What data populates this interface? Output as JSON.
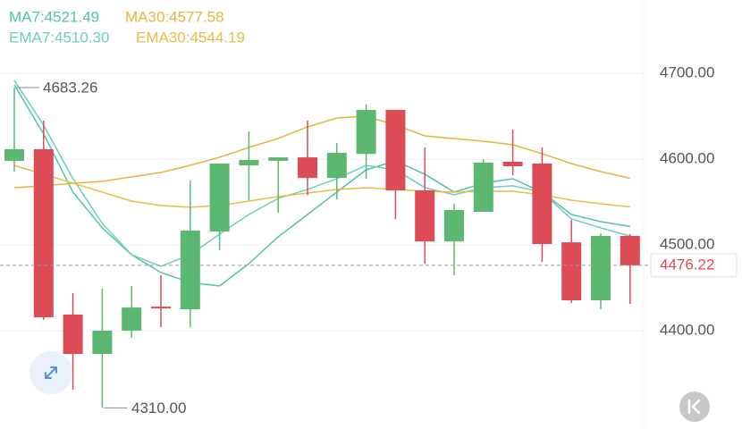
{
  "chart_data": {
    "type": "candlestick",
    "up_color": "#5cb870",
    "down_color": "#dc4b56",
    "ylim": [
      4285.4,
      4785.4
    ],
    "yticks": [
      {
        "value": 4400,
        "label": "4400.00"
      },
      {
        "value": 4500,
        "label": "4500.00"
      },
      {
        "value": 4600,
        "label": "4600.00"
      },
      {
        "value": 4700,
        "label": "4700.00"
      }
    ],
    "grid": true,
    "last_price": 4476.22,
    "max_label": 4683.26,
    "min_label": {
      "value": 4310,
      "label": "4310.00"
    },
    "candles": [
      {
        "open": 4597.9,
        "high": 4683.26,
        "low": 4585.4,
        "close": 4611.5
      },
      {
        "open": 4611.5,
        "high": 4644.8,
        "low": 4412.5,
        "close": 4415.6
      },
      {
        "open": 4418.8,
        "high": 4443.7,
        "low": 4331.3,
        "close": 4372.9
      },
      {
        "open": 4372.9,
        "high": 4449,
        "low": 4310,
        "close": 4400
      },
      {
        "open": 4400,
        "high": 4452,
        "low": 4391.7,
        "close": 4427
      },
      {
        "open": 4428,
        "high": 4464.6,
        "low": 4404.2,
        "close": 4426
      },
      {
        "open": 4425,
        "high": 4575,
        "low": 4404,
        "close": 4516.7
      },
      {
        "open": 4515.6,
        "high": 4594.8,
        "low": 4493.8,
        "close": 4594.8
      },
      {
        "open": 4592.7,
        "high": 4632.3,
        "low": 4552,
        "close": 4599
      },
      {
        "open": 4598,
        "high": 4602,
        "low": 4537.5,
        "close": 4602
      },
      {
        "open": 4602,
        "high": 4644.8,
        "low": 4558,
        "close": 4578
      },
      {
        "open": 4578,
        "high": 4618.8,
        "low": 4553,
        "close": 4607.3
      },
      {
        "open": 4606,
        "high": 4663.5,
        "low": 4577,
        "close": 4657.3
      },
      {
        "open": 4657.3,
        "high": 4657.3,
        "low": 4530,
        "close": 4563.5
      },
      {
        "open": 4563.5,
        "high": 4613.5,
        "low": 4478,
        "close": 4504
      },
      {
        "open": 4504,
        "high": 4548,
        "low": 4464.6,
        "close": 4540.6
      },
      {
        "open": 4538.5,
        "high": 4600,
        "low": 4538.5,
        "close": 4595.8
      },
      {
        "open": 4596.9,
        "high": 4634.4,
        "low": 4581,
        "close": 4591.7
      },
      {
        "open": 4594.8,
        "high": 4613.5,
        "low": 4480,
        "close": 4501
      },
      {
        "open": 4503,
        "high": 4529,
        "low": 4432.3,
        "close": 4435.4
      },
      {
        "open": 4435.4,
        "high": 4513.5,
        "low": 4425,
        "close": 4510.4
      },
      {
        "open": 4510.4,
        "high": 4512.5,
        "low": 4431.3,
        "close": 4476.22
      }
    ],
    "series": [
      {
        "name": "MA7:4521.49",
        "color": "#4fc4a9",
        "values": [
          4686.5,
          4629.2,
          4561.5,
          4519.8,
          4488.5,
          4467.7,
          4456.2,
          4452.1,
          4478.1,
          4509.4,
          4535.4,
          4561.5,
          4587.5,
          4597.9,
          4582.3,
          4561.5,
          4571.9,
          4577.1,
          4561.5,
          4535.4,
          4527.1,
          4521.49
        ]
      },
      {
        "name": "MA30:4577.58",
        "color": "#e6b43c",
        "values": [
          4566.7,
          4568.8,
          4571.9,
          4574,
          4579.2,
          4584.4,
          4592.7,
          4602.1,
          4613.5,
          4624,
          4637.5,
          4647.9,
          4650,
          4639.6,
          4627.1,
          4624,
          4620.8,
          4616.7,
          4606.3,
          4594.8,
          4585.4,
          4577.58
        ]
      },
      {
        "name": "EMA7:4510.30",
        "color": "#6ccfbd",
        "values": [
          4691.7,
          4639.6,
          4577.1,
          4525,
          4488.5,
          4475,
          4488.5,
          4512.5,
          4535.4,
          4554.2,
          4564.6,
          4577.1,
          4592.7,
          4587.5,
          4566.7,
          4558.3,
          4566.7,
          4568.8,
          4561.5,
          4530.2,
          4519.8,
          4510.3
        ]
      },
      {
        "name": "EMA30:4544.19",
        "color": "#e9bc48",
        "values": [
          4592.7,
          4582.3,
          4571.9,
          4561.5,
          4551,
          4545.8,
          4543.8,
          4545.8,
          4551,
          4556.3,
          4560.4,
          4564.6,
          4566.7,
          4564.6,
          4562.5,
          4561.5,
          4562.5,
          4562.5,
          4558.3,
          4552.1,
          4547.9,
          4544.19
        ]
      }
    ]
  }
}
